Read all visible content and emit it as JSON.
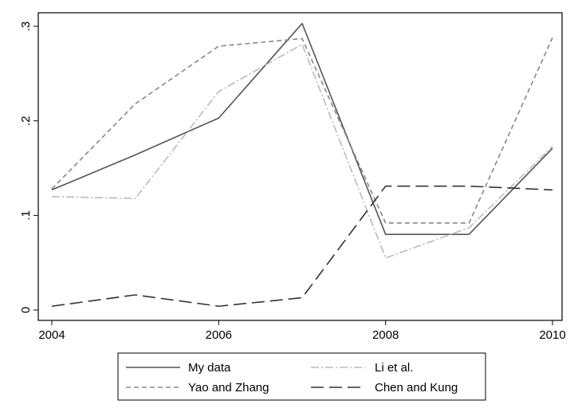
{
  "chart_data": {
    "type": "line",
    "x": [
      2004,
      2005,
      2006,
      2007,
      2008,
      2009,
      2010
    ],
    "xticks": [
      "2004",
      "2006",
      "2008",
      "2010"
    ],
    "yticks": [
      "0",
      ".1",
      ".2",
      ".3"
    ],
    "xlim": [
      2004,
      2010
    ],
    "ylim": [
      0,
      0.3
    ],
    "grid": false,
    "legend_position": "bottom",
    "series": [
      {
        "name": "My data",
        "values": [
          0.127,
          0.164,
          0.203,
          0.303,
          0.08,
          0.08,
          0.171
        ],
        "color": "#555555",
        "dash": "solid"
      },
      {
        "name": "Yao and Zhang",
        "values": [
          0.128,
          0.218,
          0.279,
          0.287,
          0.092,
          0.092,
          0.288
        ],
        "color": "#888888",
        "dash": "dashed"
      },
      {
        "name": "Li et al.",
        "values": [
          0.12,
          0.118,
          0.231,
          0.281,
          0.055,
          0.087,
          0.173
        ],
        "color": "#bbbbbb",
        "dash": "dashdot"
      },
      {
        "name": "Chen and Kung",
        "values": [
          0.004,
          0.016,
          0.004,
          0.013,
          0.131,
          0.131,
          0.127
        ],
        "color": "#333333",
        "dash": "longdash"
      }
    ]
  }
}
